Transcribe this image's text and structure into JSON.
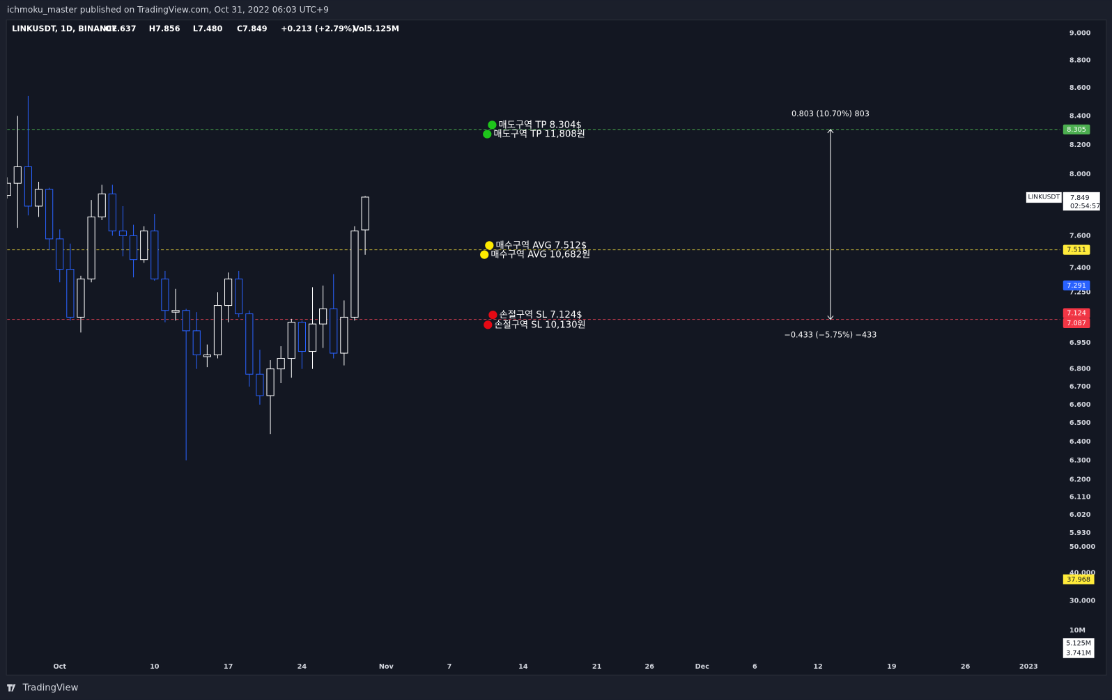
{
  "header": {
    "text": "ichmoku_master published on TradingView.com, Oct 31, 2022 06:03 UTC+9"
  },
  "footer": {
    "brand": "TradingView"
  },
  "chart_data": {
    "type": "candlestick",
    "title": "LINKUSDT, 1D, BINANCE",
    "legend": [
      "O7.637",
      "H7.856",
      "L7.480",
      "C7.849",
      "+0.213 (+2.79%)",
      "Vol5.125M"
    ],
    "x": [
      "2022-09-26",
      "2022-09-27",
      "2022-09-28",
      "2022-09-29",
      "2022-09-30",
      "2022-10-01",
      "2022-10-02",
      "2022-10-03",
      "2022-10-04",
      "2022-10-05",
      "2022-10-06",
      "2022-10-07",
      "2022-10-08",
      "2022-10-09",
      "2022-10-10",
      "2022-10-11",
      "2022-10-12",
      "2022-10-13",
      "2022-10-14",
      "2022-10-15",
      "2022-10-16",
      "2022-10-17",
      "2022-10-18",
      "2022-10-19",
      "2022-10-20",
      "2022-10-21",
      "2022-10-22",
      "2022-10-23",
      "2022-10-24",
      "2022-10-25",
      "2022-10-26",
      "2022-10-27",
      "2022-10-28",
      "2022-10-29",
      "2022-10-30"
    ],
    "open": [
      7.86,
      7.94,
      8.05,
      7.79,
      7.9,
      7.58,
      7.39,
      7.1,
      7.33,
      7.72,
      7.87,
      7.63,
      7.6,
      7.45,
      7.63,
      7.33,
      7.13,
      7.14,
      7.02,
      6.87,
      6.88,
      7.17,
      7.33,
      7.12,
      6.77,
      6.65,
      6.8,
      6.86,
      7.07,
      6.9,
      7.06,
      7.15,
      6.89,
      7.1,
      7.637
    ],
    "high": [
      7.98,
      8.4,
      8.54,
      7.95,
      7.91,
      7.64,
      7.55,
      7.35,
      7.83,
      7.93,
      7.93,
      7.79,
      7.67,
      7.66,
      7.74,
      7.38,
      7.27,
      7.15,
      7.13,
      6.94,
      7.25,
      7.37,
      7.38,
      7.14,
      6.91,
      6.85,
      6.93,
      7.09,
      7.08,
      7.28,
      7.29,
      7.36,
      7.2,
      7.66,
      7.856
    ],
    "low": [
      7.84,
      7.65,
      7.73,
      7.72,
      7.51,
      7.31,
      7.08,
      7.01,
      7.31,
      7.7,
      7.6,
      7.47,
      7.34,
      7.43,
      7.32,
      7.07,
      7.08,
      6.3,
      6.8,
      6.81,
      6.86,
      7.07,
      7.1,
      6.7,
      6.6,
      6.44,
      6.72,
      6.75,
      6.8,
      6.8,
      6.92,
      6.86,
      6.82,
      7.08,
      7.48
    ],
    "close": [
      7.94,
      8.05,
      7.79,
      7.9,
      7.58,
      7.39,
      7.1,
      7.33,
      7.72,
      7.87,
      7.63,
      7.6,
      7.45,
      7.63,
      7.33,
      7.14,
      7.14,
      7.02,
      6.88,
      6.88,
      7.17,
      7.33,
      7.12,
      6.77,
      6.65,
      6.8,
      6.86,
      7.07,
      6.9,
      7.06,
      7.15,
      6.89,
      7.1,
      7.63,
      7.849
    ],
    "up_color": "#ffffff",
    "down_color": "#2962ff",
    "xlim": [
      "2022-09-26",
      "2023-01-04"
    ],
    "xticks": [
      {
        "value": "2022-10-01",
        "label": "Oct"
      },
      {
        "value": "2022-10-10",
        "label": "10"
      },
      {
        "value": "2022-10-17",
        "label": "17"
      },
      {
        "value": "2022-10-24",
        "label": "24"
      },
      {
        "value": "2022-11-01",
        "label": "Nov"
      },
      {
        "value": "2022-11-07",
        "label": "7"
      },
      {
        "value": "2022-11-14",
        "label": "14"
      },
      {
        "value": "2022-11-21",
        "label": "21"
      },
      {
        "value": "2022-11-26",
        "label": "26"
      },
      {
        "value": "2022-12-01",
        "label": "Dec"
      },
      {
        "value": "2022-12-06",
        "label": "6"
      },
      {
        "value": "2022-12-12",
        "label": "12"
      },
      {
        "value": "2022-12-19",
        "label": "19"
      },
      {
        "value": "2022-12-26",
        "label": "26"
      },
      {
        "value": "2023-01-01",
        "label": "2023"
      }
    ],
    "ylim": [
      5.9,
      9.1
    ],
    "log_scale": true,
    "grid": false,
    "yticks": [
      {
        "value": 9,
        "label": "9.000"
      },
      {
        "value": 8.8,
        "label": "8.800"
      },
      {
        "value": 8.6,
        "label": "8.600"
      },
      {
        "value": 8.4,
        "label": "8.400"
      },
      {
        "value": 8.2,
        "label": "8.200"
      },
      {
        "value": 8,
        "label": "8.000"
      },
      {
        "value": 7.6,
        "label": "7.600"
      },
      {
        "value": 7.4,
        "label": "7.400"
      },
      {
        "value": 7.25,
        "label": "7.250"
      },
      {
        "value": 6.95,
        "label": "6.950"
      },
      {
        "value": 6.8,
        "label": "6.800"
      },
      {
        "value": 6.7,
        "label": "6.700"
      },
      {
        "value": 6.6,
        "label": "6.600"
      },
      {
        "value": 6.5,
        "label": "6.500"
      },
      {
        "value": 6.4,
        "label": "6.400"
      },
      {
        "value": 6.3,
        "label": "6.300"
      },
      {
        "value": 6.2,
        "label": "6.200"
      },
      {
        "value": 6.11,
        "label": "6.110"
      },
      {
        "value": 6.02,
        "label": "6.020"
      },
      {
        "value": 5.93,
        "label": "5.930"
      }
    ],
    "levels": [
      {
        "value": 8.305,
        "color": "#4caf50"
      },
      {
        "value": 7.511,
        "color": "#c9b83a"
      },
      {
        "value": 7.087,
        "color": "#b2384a"
      }
    ],
    "price_labels": [
      {
        "value": 8.305,
        "color": "#4caf50"
      },
      {
        "value": 7.849,
        "color": "#ffffff"
      },
      {
        "value": 7.511,
        "color": "#ffeb3b"
      },
      {
        "value": 7.291,
        "color": "#2962ff"
      },
      {
        "value": 7.124,
        "color": "#f23645"
      },
      {
        "value": 7.087,
        "color": "#f23645"
      }
    ],
    "symbol_tag": "LINKUSDT",
    "countdown": "02:54:57",
    "annotations": [
      {
        "text": "매도구역 TP 8.304$",
        "color": "#1ec51b"
      },
      {
        "text": "매도구역 TP 11,808원",
        "color": "#1ec51b"
      },
      {
        "text": "매수구역 AVG 7.512$",
        "color": "#ffeb00"
      },
      {
        "text": "매수구역 AVG 10,682원",
        "color": "#ffeb00"
      },
      {
        "text": "손절구역 SL 7.124$",
        "color": "#e50914"
      },
      {
        "text": "손절구역 SL 10,130원",
        "color": "#e50914"
      }
    ],
    "measure": [
      "0.803 (10.70%) 803",
      "−0.433 (−5.75%) −433"
    ],
    "lower_pane": {
      "axis_labels": [
        "50.000",
        "40.000",
        "30.000",
        "10M"
      ],
      "value_labels": [
        {
          "label": "37.968",
          "color": "#ffeb3b"
        },
        {
          "label": "5.125M",
          "color": "#ffffff"
        },
        {
          "label": "3.741M",
          "color": "#ffffff"
        }
      ]
    }
  }
}
